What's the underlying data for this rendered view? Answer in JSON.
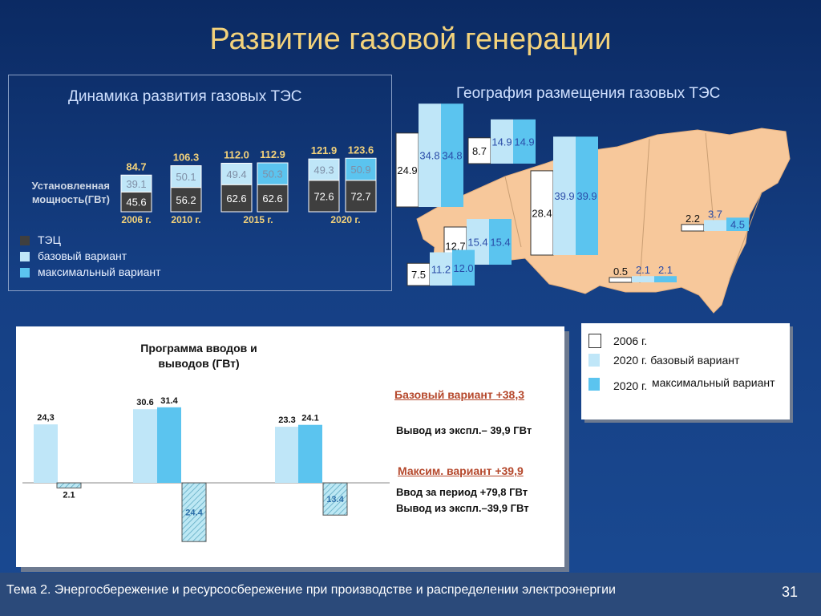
{
  "slide": {
    "title": "Развитие газовой генерации",
    "footer": "Тема 2. Энергосбережение и ресурсосбережение при производстве и распределении электроэнергии",
    "page_number": "31"
  },
  "colors": {
    "tec": "#3f3f3f",
    "base": "#bfe6f8",
    "max": "#5bc4ef",
    "map_land": "#f7c89b",
    "title": "#f3d27b"
  },
  "left_panel": {
    "title": "Динамика развития газовых ТЭС",
    "ylabel_line1": "Установленная",
    "ylabel_line2": "мощность(ГВт)",
    "legend": [
      "ТЭЦ",
      "базовый вариант",
      "максимальный вариант"
    ]
  },
  "right_panel": {
    "title": "География размещения газовых ТЭС",
    "legend": [
      {
        "label": "2006 г."
      },
      {
        "label": "2020 г. базовый вариант"
      },
      {
        "label": "2020 г.",
        "label2": "максимальный вариант"
      }
    ]
  },
  "program_panel": {
    "title_line1": "Программа вводов и",
    "title_line2": "выводов (ГВт)",
    "base_heading": "Базовый вариант +38,3",
    "base_line": "Вывод из экспл.– 39,9 ГВт",
    "max_heading": "Максим. вариант +39,9",
    "max_line1": "Ввод за период +79,8 ГВт",
    "max_line2": "Вывод из экспл.–39,9 ГВт"
  },
  "chart_data": [
    {
      "type": "bar",
      "title": "Динамика развития газовых ТЭС",
      "ylabel": "Установленная мощность(ГВт)",
      "categories": [
        "2006 г.",
        "2010 г.",
        "2015 г.",
        "2020 г."
      ],
      "stacks": [
        {
          "category": "2006 г.",
          "variant": "базовый вариант",
          "tec": 45.6,
          "addition": 39.1,
          "total": 84.7
        },
        {
          "category": "2010 г.",
          "variant": "базовый вариант",
          "tec": 56.2,
          "addition": 50.1,
          "total": 106.3
        },
        {
          "category": "2015 г.",
          "variant": "базовый вариант",
          "tec": 62.6,
          "addition": 49.4,
          "total": 112.0
        },
        {
          "category": "2015 г.",
          "variant": "максимальный вариант",
          "tec": 62.6,
          "addition": 50.3,
          "total": 112.9
        },
        {
          "category": "2020 г.",
          "variant": "базовый вариант",
          "tec": 72.6,
          "addition": 49.3,
          "total": 121.9
        },
        {
          "category": "2020 г.",
          "variant": "максимальный вариант",
          "tec": 72.7,
          "addition": 50.9,
          "total": 123.6
        }
      ],
      "legend": [
        "ТЭЦ",
        "базовый вариант",
        "максимальный вариант"
      ]
    },
    {
      "type": "bar",
      "title": "География размещения газовых ТЭС",
      "series": [
        {
          "name": "2006 г.",
          "values": [
            24.9,
            8.7,
            12.7,
            28.4,
            7.5,
            0.5,
            2.2
          ]
        },
        {
          "name": "2020 г. базовый вариант",
          "values": [
            34.8,
            14.9,
            15.4,
            39.9,
            11.2,
            2.1,
            3.7
          ]
        },
        {
          "name": "2020 г. максимальный вариант",
          "values": [
            34.8,
            14.9,
            15.4,
            39.9,
            12.0,
            2.1,
            4.5
          ]
        }
      ]
    },
    {
      "type": "bar",
      "title": "Программа вводов и выводов (ГВт)",
      "bars": [
        {
          "label": "24,3",
          "value": 24.3,
          "variant": "base"
        },
        {
          "label": "2.1",
          "value": -2.1,
          "variant": "hatched"
        },
        {
          "label": "30.6",
          "value": 30.6,
          "variant": "base"
        },
        {
          "label": "31.4",
          "value": 31.4,
          "variant": "max"
        },
        {
          "label": "24.4",
          "value": -24.4,
          "variant": "hatched"
        },
        {
          "label": "23.3",
          "value": 23.3,
          "variant": "base"
        },
        {
          "label": "24.1",
          "value": 24.1,
          "variant": "max"
        },
        {
          "label": "13.4",
          "value": -13.4,
          "variant": "hatched"
        }
      ]
    }
  ]
}
